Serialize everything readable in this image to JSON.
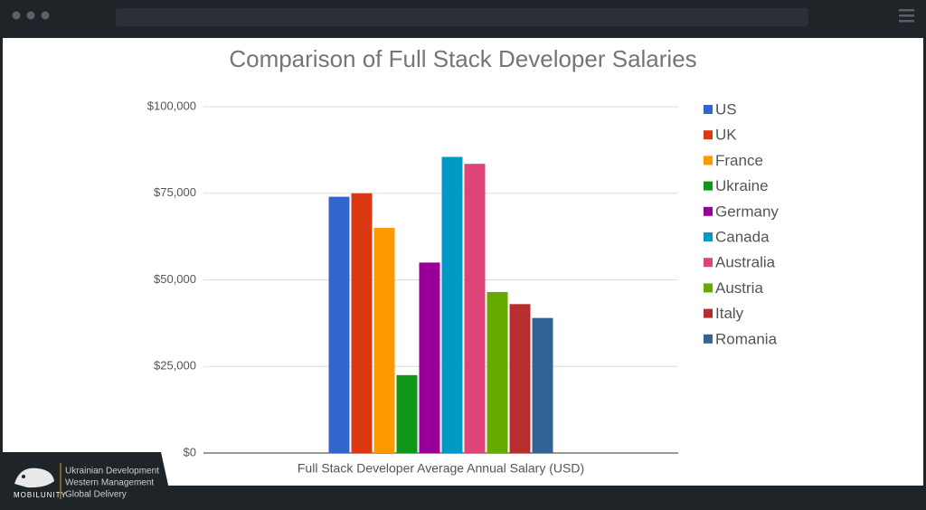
{
  "chart_data": {
    "type": "bar",
    "title": "Comparison of Full Stack Developer Salaries",
    "categories": [
      "Full Stack Developer Average Annual Salary (USD)"
    ],
    "series": [
      {
        "name": "US",
        "color": "#3366cc",
        "values": [
          74000
        ]
      },
      {
        "name": "UK",
        "color": "#dc3912",
        "values": [
          75000
        ]
      },
      {
        "name": "France",
        "color": "#ff9900",
        "values": [
          65000
        ]
      },
      {
        "name": "Ukraine",
        "color": "#109618",
        "values": [
          22500
        ]
      },
      {
        "name": "Germany",
        "color": "#990099",
        "values": [
          55000
        ]
      },
      {
        "name": "Canada",
        "color": "#0099c6",
        "values": [
          85500
        ]
      },
      {
        "name": "Australia",
        "color": "#dd4477",
        "values": [
          83500
        ]
      },
      {
        "name": "Austria",
        "color": "#66aa00",
        "values": [
          46500
        ]
      },
      {
        "name": "Italy",
        "color": "#b82e2e",
        "values": [
          43000
        ]
      },
      {
        "name": "Romania",
        "color": "#316395",
        "values": [
          39000
        ]
      }
    ],
    "ylim": [
      0,
      100000
    ],
    "yticks": [
      {
        "value": 0,
        "label": "$0"
      },
      {
        "value": 25000,
        "label": "$25,000"
      },
      {
        "value": 50000,
        "label": "$50,000"
      },
      {
        "value": 75000,
        "label": "$75,000"
      },
      {
        "value": 100000,
        "label": "$100,000"
      }
    ],
    "grid": true,
    "legend": "right"
  },
  "branding": {
    "name": "MOBILUNITY",
    "lines": [
      "Ukrainian Development",
      "Western Management",
      "Global Delivery"
    ]
  }
}
